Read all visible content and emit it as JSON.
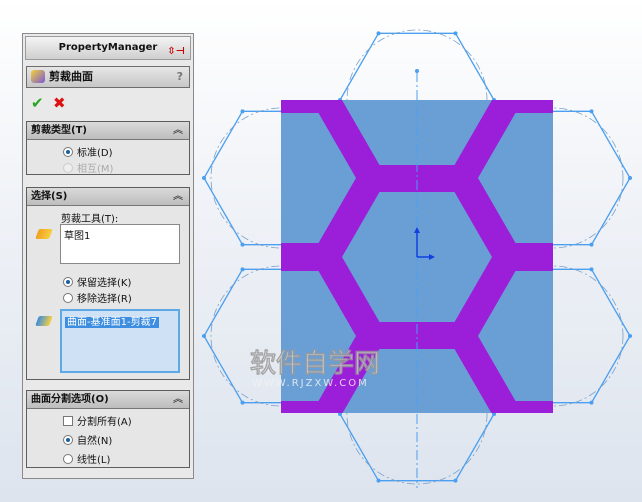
{
  "panel": {
    "title": "PropertyManager",
    "feature_title": "剪裁曲面",
    "help": "?",
    "ok": "✔",
    "cancel": "✖"
  },
  "trim_type": {
    "header": "剪裁类型(T)",
    "options": [
      {
        "label": "标准(D)",
        "selected": true
      },
      {
        "label": "相互(M)",
        "selected": false,
        "disabled": true
      }
    ]
  },
  "selection": {
    "header": "选择(S)",
    "tool_label": "剪裁工具(T):",
    "tool_items": [
      "草图1"
    ],
    "options": [
      {
        "label": "保留选择(K)",
        "selected": true
      },
      {
        "label": "移除选择(R)",
        "selected": false
      }
    ],
    "pieces": [
      "曲面-基准面1-剪裁7"
    ]
  },
  "split": {
    "header": "曲面分割选项(O)",
    "split_all": {
      "label": "分割所有(A)",
      "checked": false
    },
    "options": [
      {
        "label": "自然(N)",
        "selected": true
      },
      {
        "label": "线性(L)",
        "selected": false
      }
    ]
  },
  "collapse_icon": "double-chevron-up",
  "watermark": {
    "title": "软件自学网",
    "url": "WWW.RJZXW.COM"
  },
  "colors": {
    "surface": "#6a9fd6",
    "band": "#9b1ed8",
    "sketch": "#4a9ff0"
  }
}
